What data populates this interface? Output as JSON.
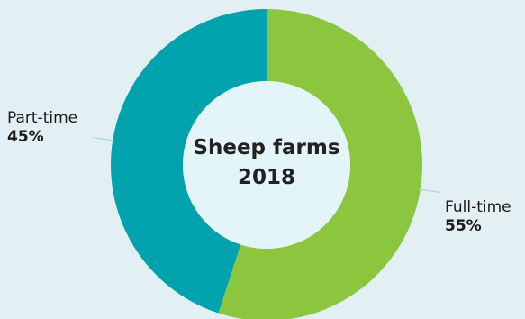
{
  "chart_data": {
    "type": "pie",
    "variant": "donut",
    "title_line1": "Sheep farms",
    "title_line2": "2018",
    "slices": [
      {
        "label": "Full-time",
        "value": 55,
        "value_label": "55%",
        "color": "#8cc63f"
      },
      {
        "label": "Part-time",
        "value": 45,
        "value_label": "45%",
        "color": "#00a3ad"
      }
    ]
  },
  "colors": {
    "background": "#e3f0f3",
    "hole": "#e3f5f8",
    "leader_line": "#a9d9de"
  }
}
